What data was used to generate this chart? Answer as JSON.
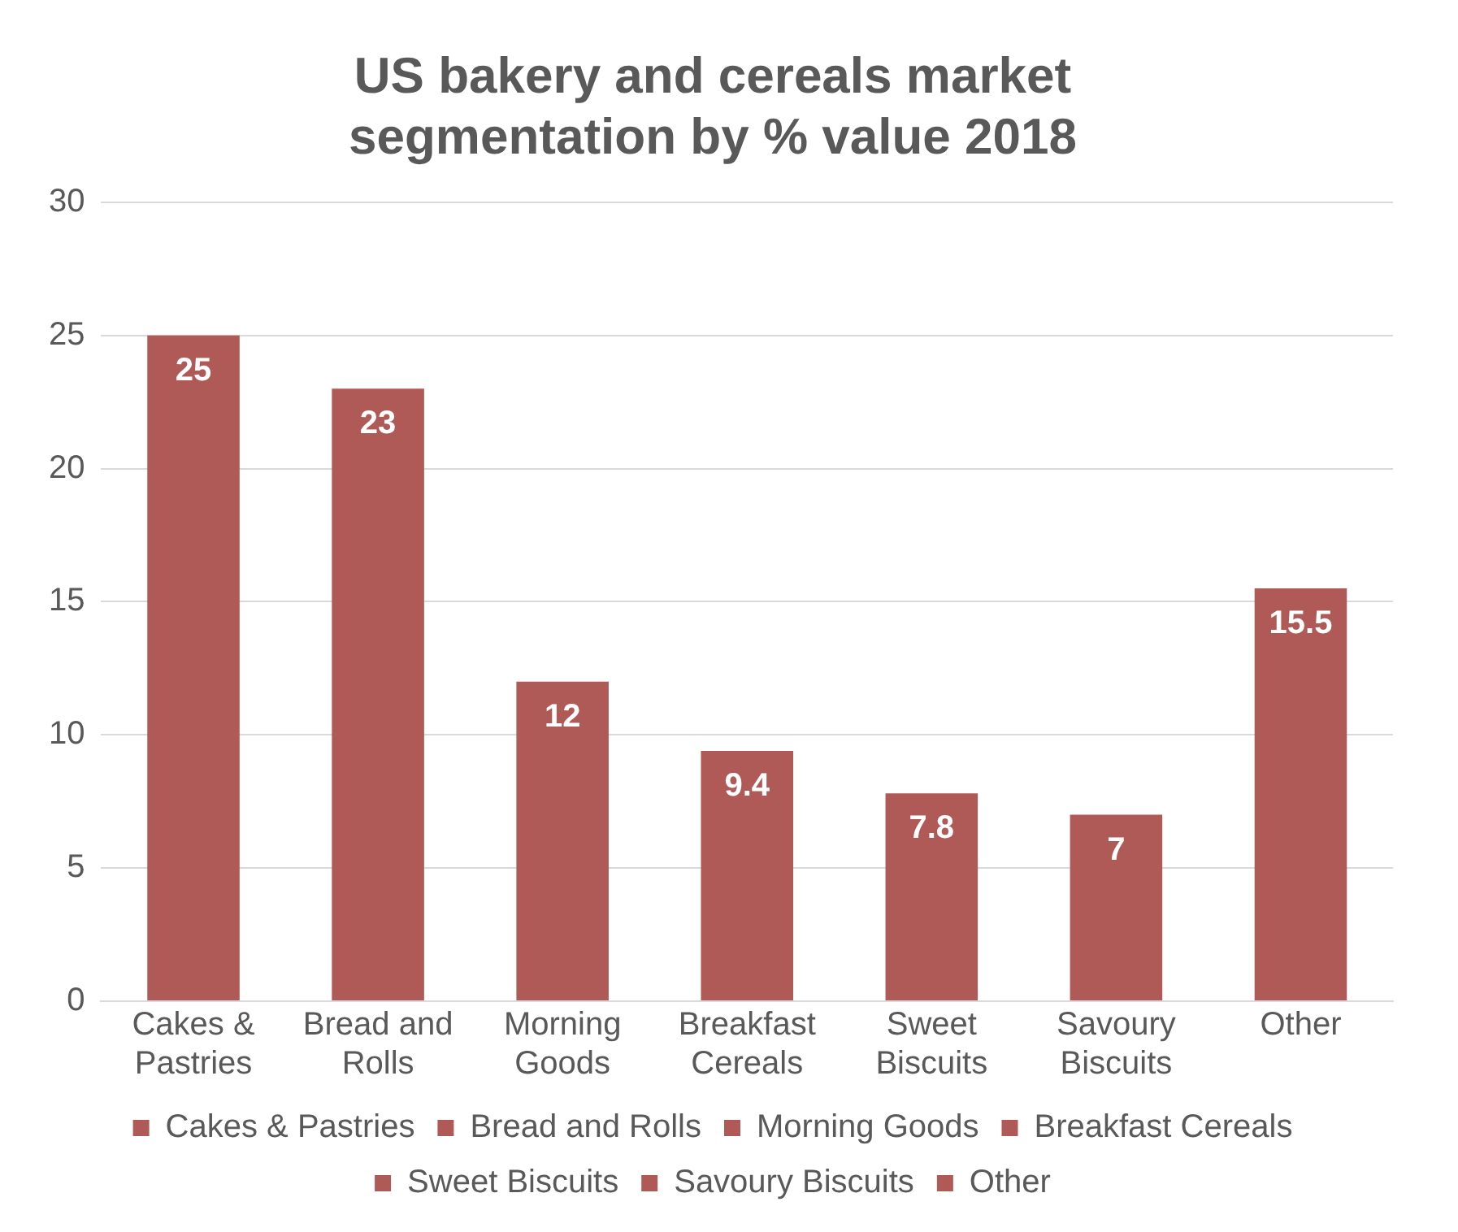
{
  "chart_data": {
    "type": "bar",
    "title": "US bakery and cereals market segmentation by % value 2018",
    "categories": [
      "Cakes & Pastries",
      "Bread and Rolls",
      "Morning Goods",
      "Breakfast Cereals",
      "Sweet Biscuits",
      "Savoury Biscuits",
      "Other"
    ],
    "series": [
      {
        "name": "Cakes & Pastries",
        "color": "#b05a57",
        "values": [
          25,
          null,
          null,
          null,
          null,
          null,
          null
        ]
      },
      {
        "name": "Bread and Rolls",
        "color": "#b05a57",
        "values": [
          null,
          23,
          null,
          null,
          null,
          null,
          null
        ]
      },
      {
        "name": "Morning Goods",
        "color": "#b05a57",
        "values": [
          null,
          null,
          12,
          null,
          null,
          null,
          null
        ]
      },
      {
        "name": "Breakfast Cereals",
        "color": "#b05a57",
        "values": [
          null,
          null,
          null,
          9.4,
          null,
          null,
          null
        ]
      },
      {
        "name": "Sweet Biscuits",
        "color": "#b05a57",
        "values": [
          null,
          null,
          null,
          null,
          7.8,
          null,
          null
        ]
      },
      {
        "name": "Savoury Biscuits",
        "color": "#b05a57",
        "values": [
          null,
          null,
          null,
          null,
          null,
          7,
          null
        ]
      },
      {
        "name": "Other",
        "color": "#b05a57",
        "values": [
          null,
          null,
          null,
          null,
          null,
          null,
          15.5
        ]
      }
    ],
    "ylim": [
      0,
      30
    ],
    "yticks": [
      0,
      5,
      10,
      15,
      20,
      25,
      30
    ],
    "grid": "y",
    "legend": "bottom",
    "data_labels": true
  }
}
